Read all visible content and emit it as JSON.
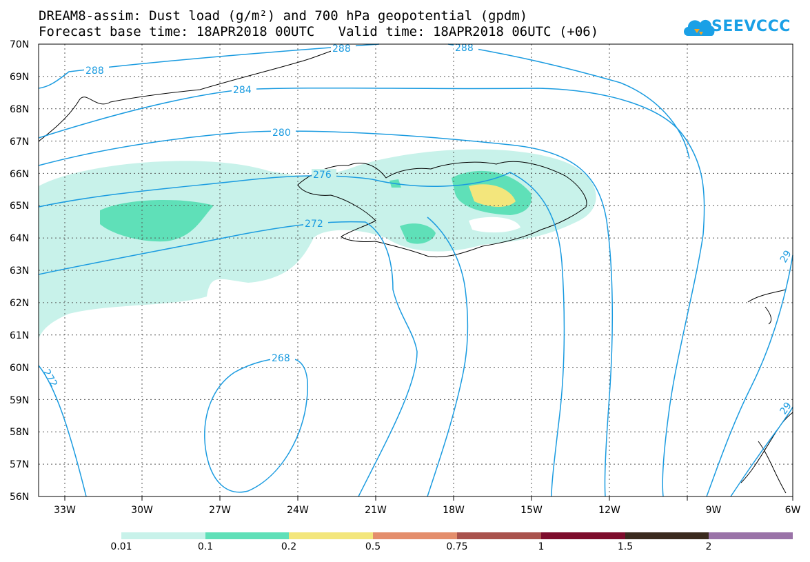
{
  "header": {
    "title_line1": "DREAM8-assim: Dust load (g/m²) and 700 hPa geopotential (gpdm)",
    "title_line2": "Forecast base time: 18APR2018 00UTC   Valid time: 18APR2018 06UTC (+06)",
    "logo_text": "SEEVCCC"
  },
  "map": {
    "lat_labels": [
      "70N",
      "69N",
      "68N",
      "67N",
      "66N",
      "65N",
      "64N",
      "63N",
      "62N",
      "61N",
      "60N",
      "59N",
      "58N",
      "57N",
      "56N"
    ],
    "lon_labels": [
      "33W",
      "30W",
      "27W",
      "24W",
      "21W",
      "18W",
      "15W",
      "12W",
      "9W",
      "6W"
    ],
    "contour_labels": [
      "288",
      "288",
      "284",
      "280",
      "276",
      "272",
      "268",
      "272",
      "29",
      "29",
      "288"
    ],
    "colors": {
      "contour": "#1a9be0",
      "dust_0_01": "#c8f2ea",
      "dust_0_1": "#5fe0b8",
      "dust_0_2": "#f3e67c"
    }
  },
  "colorbar": {
    "labels": [
      "0.01",
      "0.1",
      "0.2",
      "0.5",
      "0.75",
      "1",
      "1.5",
      "2"
    ],
    "colors": [
      "#c8f2ea",
      "#5fe0b8",
      "#f3e67c",
      "#e48e6c",
      "#a9524d",
      "#7d0c2c",
      "#3a2a1e",
      "#9a73a8"
    ]
  }
}
